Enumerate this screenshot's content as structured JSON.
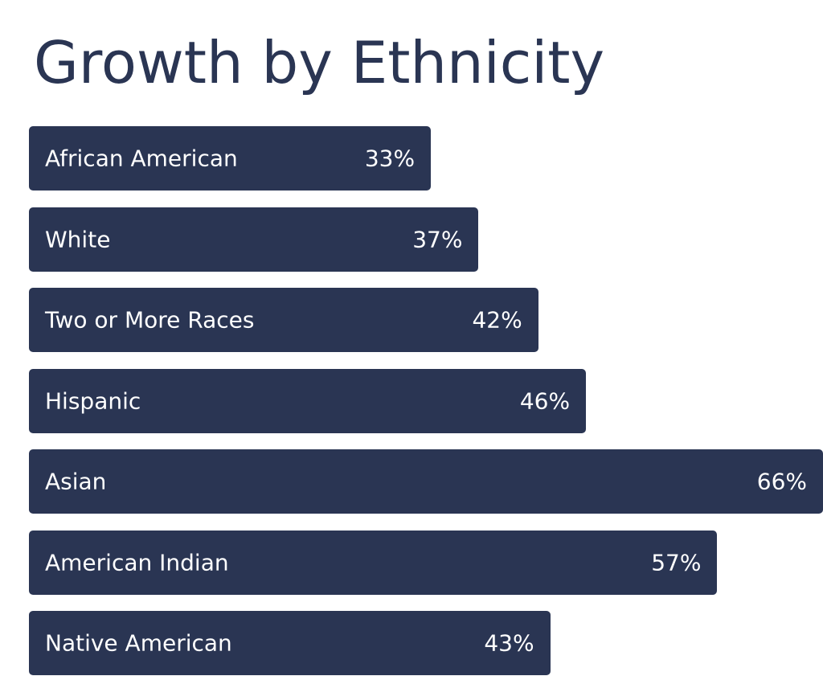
{
  "chart_data": {
    "type": "bar",
    "orientation": "horizontal",
    "title": "Growth by Ethnicity",
    "categories": [
      "African American",
      "White",
      "Two or More Races",
      "Hispanic",
      "Asian",
      "American Indian",
      "Native American"
    ],
    "values": [
      33,
      37,
      42,
      46,
      66,
      57,
      43
    ],
    "value_labels": [
      "33%",
      "37%",
      "42%",
      "46%",
      "66%",
      "57%",
      "43%"
    ],
    "unit": "%",
    "grid": false,
    "legend": "none",
    "bar_color": "#2a3553",
    "label_color": "#ffffff",
    "title_color": "#2a3553"
  }
}
